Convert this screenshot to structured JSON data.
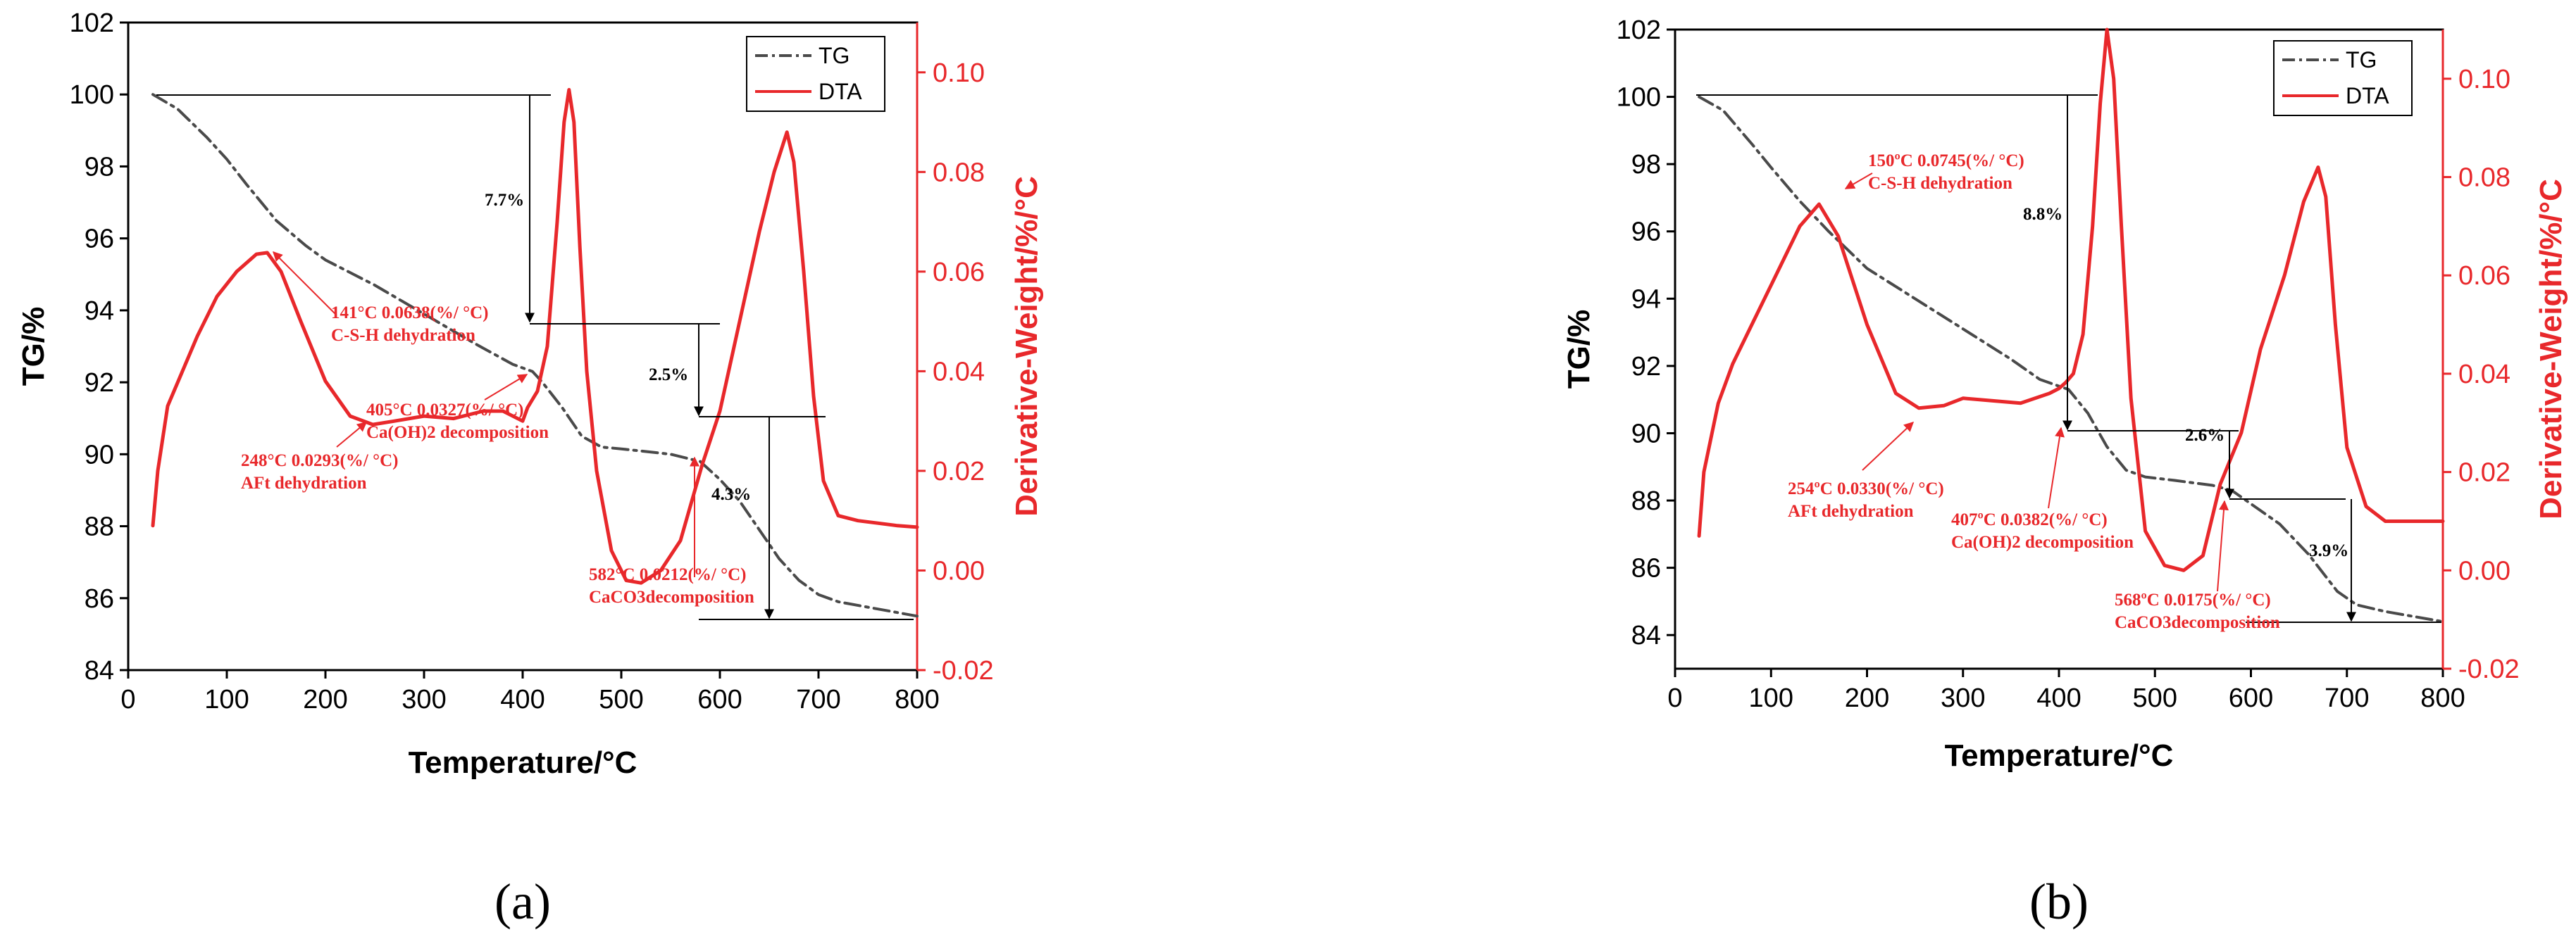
{
  "chart_data": [
    {
      "panel": "(a)",
      "type": "line",
      "xlabel": "Temperature/°C",
      "ylabel": "TG/%",
      "y2label": "Derivative-Weight/%/°C",
      "xlim": [
        0,
        800
      ],
      "ylim": [
        84,
        102
      ],
      "y2lim": [
        -0.02,
        0.11
      ],
      "xticks": [
        "0",
        "100",
        "200",
        "300",
        "400",
        "500",
        "600",
        "700",
        "800"
      ],
      "yticks": [
        "84",
        "86",
        "88",
        "90",
        "92",
        "94",
        "96",
        "98",
        "100",
        "102"
      ],
      "y2ticks": [
        "-0.02",
        "0.00",
        "0.02",
        "0.04",
        "0.06",
        "0.08",
        "0.10"
      ],
      "legend": [
        "TG",
        "DTA"
      ],
      "series": [
        {
          "name": "TG",
          "axis": "left",
          "color": "#4a4a4a",
          "dash": "dashdot",
          "x": [
            25,
            50,
            80,
            100,
            120,
            150,
            180,
            200,
            250,
            300,
            350,
            390,
            410,
            420,
            440,
            460,
            480,
            500,
            550,
            580,
            600,
            620,
            640,
            660,
            680,
            700,
            720,
            750,
            780,
            800
          ],
          "y": [
            100,
            99.6,
            98.8,
            98.2,
            97.5,
            96.5,
            95.8,
            95.4,
            94.7,
            93.9,
            93.1,
            92.5,
            92.3,
            92.0,
            91.3,
            90.5,
            90.2,
            90.15,
            90.0,
            89.8,
            89.3,
            88.7,
            87.9,
            87.1,
            86.5,
            86.1,
            85.9,
            85.75,
            85.6,
            85.5
          ]
        },
        {
          "name": "DTA",
          "axis": "right",
          "color": "#e8282b",
          "x": [
            25,
            30,
            40,
            55,
            70,
            90,
            110,
            130,
            141,
            155,
            175,
            200,
            225,
            248,
            270,
            300,
            330,
            360,
            380,
            400,
            405,
            415,
            425,
            435,
            442,
            447,
            452,
            458,
            465,
            475,
            490,
            505,
            520,
            540,
            560,
            582,
            600,
            620,
            640,
            655,
            668,
            675,
            685,
            695,
            705,
            720,
            740,
            760,
            780,
            800
          ],
          "y": [
            0.009,
            0.02,
            0.033,
            0.04,
            0.047,
            0.055,
            0.06,
            0.0635,
            0.0638,
            0.06,
            0.05,
            0.038,
            0.031,
            0.0293,
            0.03,
            0.031,
            0.0305,
            0.032,
            0.032,
            0.03,
            0.0327,
            0.036,
            0.045,
            0.07,
            0.09,
            0.0965,
            0.09,
            0.065,
            0.04,
            0.02,
            0.004,
            -0.002,
            -0.0025,
            0.0,
            0.006,
            0.0212,
            0.032,
            0.05,
            0.068,
            0.08,
            0.088,
            0.082,
            0.06,
            0.035,
            0.018,
            0.011,
            0.01,
            0.0095,
            0.009,
            0.0087
          ]
        }
      ],
      "annotations": [
        {
          "line1": "141°C 0.0638(%/ °C)",
          "line2": "C-S-H dehydration"
        },
        {
          "line1": "405°C 0.0327(%/ °C)",
          "line2": "Ca(OH)2 decomposition"
        },
        {
          "line1": "248°C 0.0293(%/ °C)",
          "line2": "AFt dehydration"
        },
        {
          "line1": "582°C 0.0212(%/ °C)",
          "line2": "CaCO3decomposition"
        }
      ],
      "mass_losses": [
        "7.7%",
        "2.5%",
        "4.3%"
      ]
    },
    {
      "panel": "(b)",
      "type": "line",
      "xlabel": "Temperature/°C",
      "ylabel": "TG/%",
      "y2label": "Derivative-Weight/%/°C",
      "xlim": [
        0,
        800
      ],
      "ylim": [
        83,
        102
      ],
      "y2lim": [
        -0.02,
        0.11
      ],
      "xticks": [
        "0",
        "100",
        "200",
        "300",
        "400",
        "500",
        "600",
        "700",
        "800"
      ],
      "yticks": [
        "84",
        "86",
        "88",
        "90",
        "92",
        "94",
        "96",
        "98",
        "100",
        "102"
      ],
      "y2ticks": [
        "-0.02",
        "0.00",
        "0.02",
        "0.04",
        "0.06",
        "0.08",
        "0.10"
      ],
      "legend": [
        "TG",
        "DTA"
      ],
      "series": [
        {
          "name": "TG",
          "axis": "left",
          "color": "#4a4a4a",
          "dash": "dashdot",
          "x": [
            25,
            50,
            80,
            100,
            130,
            160,
            200,
            250,
            300,
            350,
            380,
            400,
            410,
            430,
            450,
            470,
            490,
            520,
            560,
            580,
            600,
            630,
            660,
            690,
            710,
            740,
            770,
            800
          ],
          "y": [
            100,
            99.6,
            98.6,
            97.9,
            96.9,
            96.0,
            94.9,
            94.0,
            93.1,
            92.2,
            91.6,
            91.4,
            91.3,
            90.6,
            89.6,
            88.9,
            88.7,
            88.6,
            88.45,
            88.3,
            87.9,
            87.3,
            86.4,
            85.3,
            84.9,
            84.7,
            84.55,
            84.4
          ]
        },
        {
          "name": "DTA",
          "axis": "right",
          "color": "#e8282b",
          "x": [
            25,
            30,
            45,
            60,
            80,
            100,
            130,
            150,
            170,
            200,
            230,
            254,
            280,
            300,
            330,
            360,
            390,
            400,
            407,
            415,
            425,
            435,
            443,
            450,
            457,
            465,
            475,
            490,
            510,
            530,
            550,
            568,
            590,
            610,
            635,
            655,
            670,
            678,
            688,
            700,
            720,
            740,
            760,
            780,
            800
          ],
          "y": [
            0.007,
            0.02,
            0.034,
            0.042,
            0.05,
            0.058,
            0.07,
            0.0745,
            0.068,
            0.05,
            0.036,
            0.033,
            0.0335,
            0.035,
            0.0345,
            0.034,
            0.036,
            0.037,
            0.0382,
            0.04,
            0.048,
            0.07,
            0.095,
            0.11,
            0.1,
            0.07,
            0.035,
            0.008,
            0.001,
            0.0,
            0.003,
            0.0175,
            0.028,
            0.045,
            0.06,
            0.075,
            0.082,
            0.076,
            0.05,
            0.025,
            0.013,
            0.01,
            0.01,
            0.01,
            0.01
          ]
        }
      ],
      "annotations": [
        {
          "line1": "150ºC 0.0745(%/ °C)",
          "line2": "C-S-H dehydration"
        },
        {
          "line1": "254ºC 0.0330(%/ °C)",
          "line2": "AFt dehydration"
        },
        {
          "line1": "407ºC 0.0382(%/ °C)",
          "line2": "Ca(OH)2 decomposition"
        },
        {
          "line1": "568ºC 0.0175(%/ °C)",
          "line2": "CaCO3decomposition"
        }
      ],
      "mass_losses": [
        "8.8%",
        "2.6%",
        "3.9%"
      ]
    }
  ]
}
